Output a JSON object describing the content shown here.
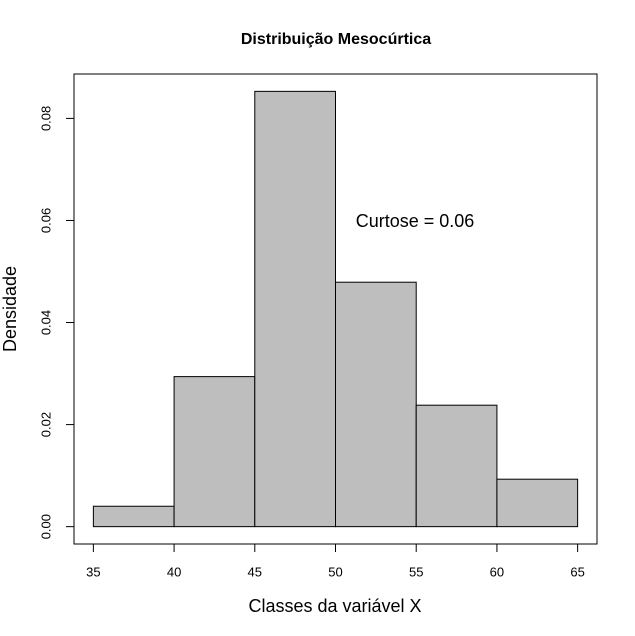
{
  "chart_data": {
    "type": "histogram",
    "title": "Distribuição Mesocúrtica",
    "xlabel": "Classes da variável X",
    "ylabel": "Densidade",
    "annotation": "Curtose = 0.06",
    "bins": [
      35,
      40,
      45,
      50,
      55,
      60,
      65
    ],
    "values": [
      0.004,
      0.0294,
      0.0853,
      0.0479,
      0.0238,
      0.0093
    ],
    "color": "#bebebe",
    "xlim": [
      33.8,
      66.2
    ],
    "xticks": [
      35,
      40,
      45,
      50,
      55,
      60,
      65
    ],
    "ylim": [
      -0.0034,
      0.0887
    ],
    "yticks": [
      {
        "value": 0,
        "label": "0.00"
      },
      {
        "value": 0.02,
        "label": "0.02"
      },
      {
        "value": 0.04,
        "label": "0.04"
      },
      {
        "value": 0.06,
        "label": "0.06"
      },
      {
        "value": 0.08,
        "label": "0.08"
      }
    ]
  }
}
